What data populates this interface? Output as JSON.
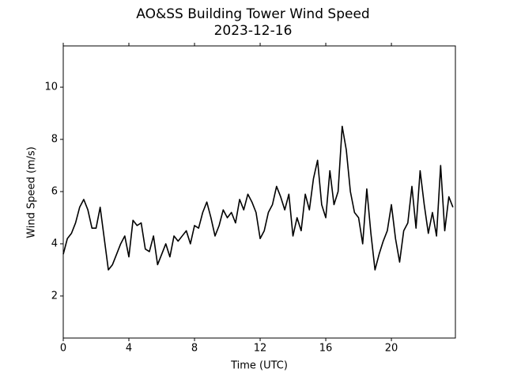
{
  "chart_data": {
    "type": "line",
    "title": "AO&SS Building Tower Wind Speed",
    "subtitle": "2023-12-16",
    "x_label": "Time (UTC)",
    "y_label": "Wind Speed (m/s)",
    "x": [
      0,
      0.25,
      0.5,
      0.75,
      1,
      1.25,
      1.5,
      1.75,
      2,
      2.25,
      2.5,
      2.75,
      3,
      3.25,
      3.5,
      3.75,
      4,
      4.25,
      4.5,
      4.75,
      5,
      5.25,
      5.5,
      5.75,
      6,
      6.25,
      6.5,
      6.75,
      7,
      7.25,
      7.5,
      7.75,
      8,
      8.25,
      8.5,
      8.75,
      9,
      9.25,
      9.5,
      9.75,
      10,
      10.25,
      10.5,
      10.75,
      11,
      11.25,
      11.5,
      11.75,
      12,
      12.25,
      12.5,
      12.75,
      13,
      13.25,
      13.5,
      13.75,
      14,
      14.25,
      14.5,
      14.75,
      15,
      15.25,
      15.5,
      15.75,
      16,
      16.25,
      16.5,
      16.75,
      17,
      17.25,
      17.5,
      17.75,
      18,
      18.25,
      18.5,
      18.75,
      19,
      19.25,
      19.5,
      19.75,
      20,
      20.25,
      20.5,
      20.75,
      21,
      21.25,
      21.5,
      21.75,
      22,
      22.25,
      22.5,
      22.75,
      23,
      23.25,
      23.5,
      23.75
    ],
    "series": [
      {
        "name": "Wind Speed",
        "color": "#000000",
        "values": [
          3.6,
          4.2,
          4.4,
          4.8,
          5.4,
          5.7,
          5.3,
          4.6,
          4.6,
          5.4,
          4.2,
          3.0,
          3.2,
          3.6,
          4.0,
          4.3,
          3.5,
          4.9,
          4.7,
          4.8,
          3.8,
          3.7,
          4.3,
          3.2,
          3.6,
          4.0,
          3.5,
          4.3,
          4.1,
          4.3,
          4.5,
          4.0,
          4.7,
          4.6,
          5.2,
          5.6,
          5.0,
          4.3,
          4.7,
          5.3,
          5.0,
          5.2,
          4.8,
          5.7,
          5.3,
          5.9,
          5.6,
          5.2,
          4.2,
          4.5,
          5.2,
          5.5,
          6.2,
          5.8,
          5.3,
          5.9,
          4.3,
          5.0,
          4.5,
          5.9,
          5.3,
          6.5,
          7.2,
          5.5,
          5.0,
          6.8,
          5.5,
          6.0,
          8.5,
          7.6,
          6.0,
          5.2,
          5.0,
          4.0,
          6.1,
          4.4,
          3.0,
          3.6,
          4.1,
          4.5,
          5.5,
          4.2,
          3.3,
          4.5,
          4.8,
          6.2,
          4.6,
          6.8,
          5.5,
          4.4,
          5.2,
          4.3,
          7.0,
          4.5,
          5.8,
          5.4
        ]
      }
    ],
    "xlim": [
      0,
      23.9
    ],
    "xticks": [
      0,
      4,
      8,
      12,
      16,
      20
    ],
    "ylim": [
      0.39,
      11.58
    ],
    "yticks": [
      2,
      4,
      6,
      8,
      10
    ]
  }
}
